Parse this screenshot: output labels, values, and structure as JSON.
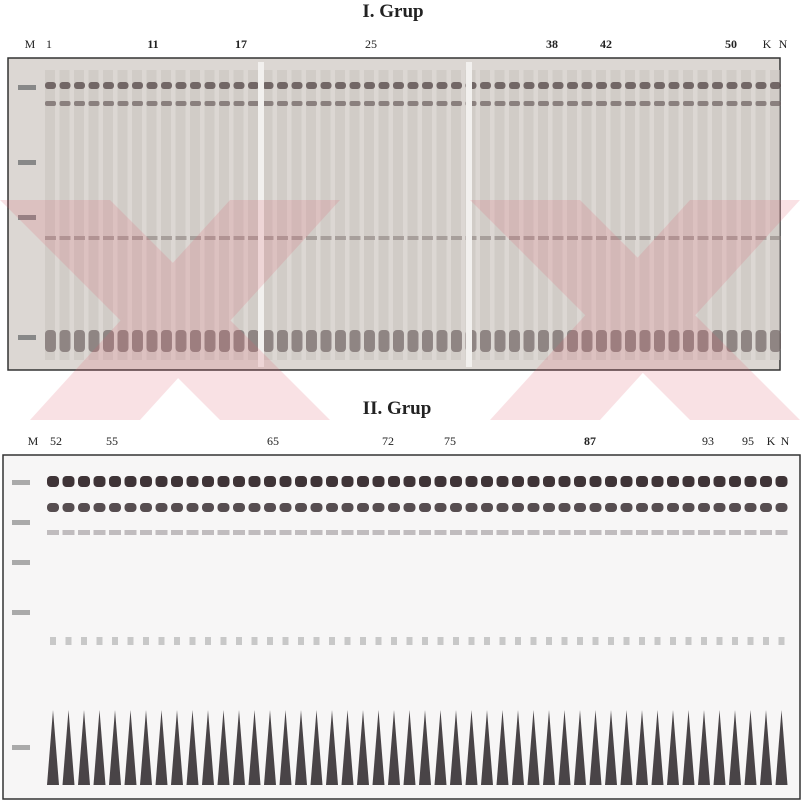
{
  "panel_1": {
    "title": "I. Grup",
    "lane_labels": [
      "M",
      "1",
      "11",
      "17",
      "25",
      "38",
      "42",
      "50",
      "K",
      "N"
    ]
  },
  "panel_2": {
    "title": "II. Grup",
    "lane_labels": [
      "M",
      "52",
      "55",
      "65",
      "72",
      "75",
      "87",
      "93",
      "95",
      "K",
      "N"
    ]
  }
}
